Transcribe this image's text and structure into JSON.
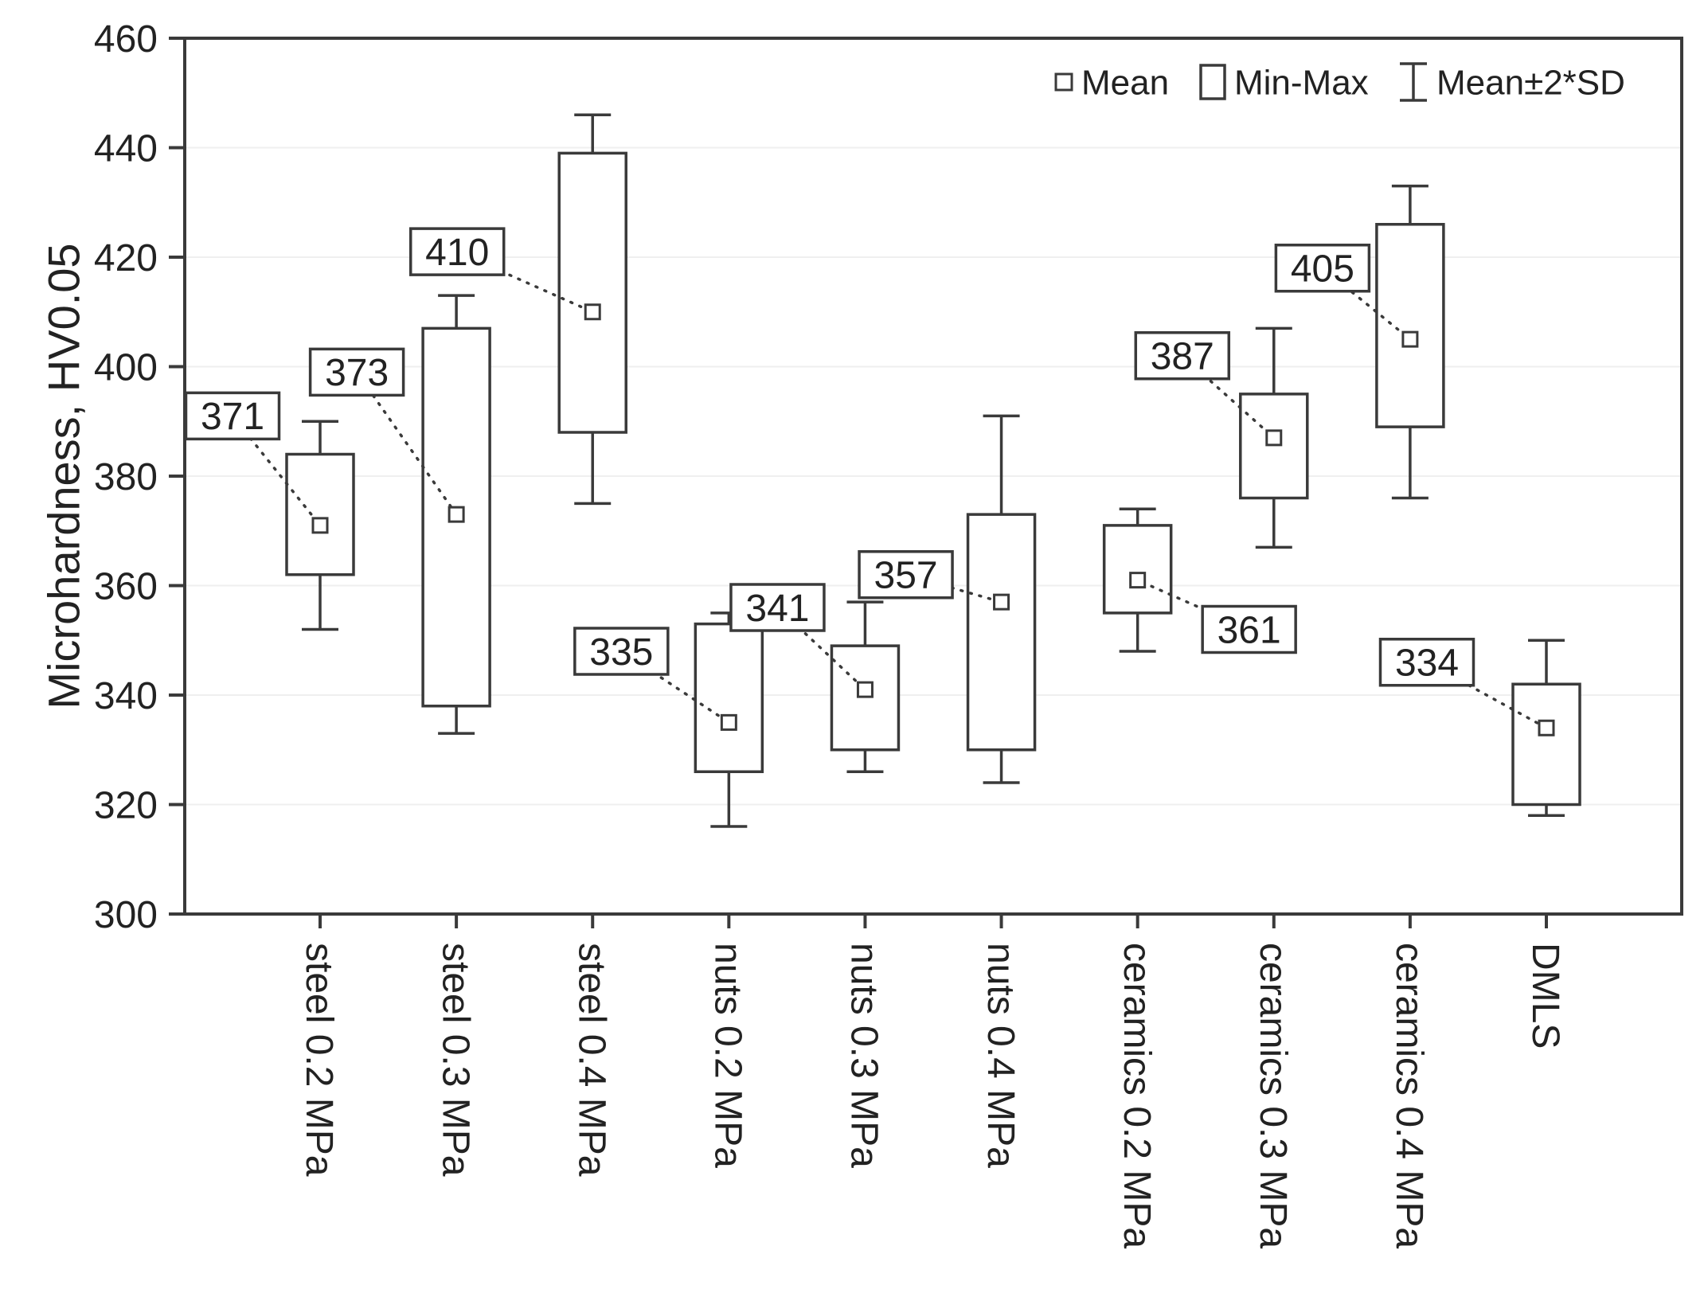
{
  "figure": {
    "background": "#ffffff",
    "axis_color": "#3a3a3a",
    "grid_color": "#efefef",
    "text_color": "#222222",
    "box_fill": "#ffffff"
  },
  "chart_data": {
    "type": "box",
    "title": "",
    "ylabel": "Microhardness, HV0.05",
    "xlabel": "",
    "ylim": [
      300,
      460
    ],
    "yticks": [
      300,
      320,
      340,
      360,
      380,
      400,
      420,
      440,
      460
    ],
    "grid": "faint-horizontal",
    "legend": {
      "position": "top-right-inside",
      "items": [
        {
          "label": "Mean",
          "marker": "open-square"
        },
        {
          "label": "Min-Max",
          "marker": "open-box"
        },
        {
          "label": "Mean±2*SD",
          "marker": "whisker-bar"
        }
      ]
    },
    "categories": [
      "steel 0.2 MPa",
      "steel 0.3 MPa",
      "steel 0.4 MPa",
      "nuts 0.2 MPa",
      "nuts 0.3 MPa",
      "nuts 0.4 MPa",
      "ceramics 0.2 MPa",
      "ceramics 0.3 MPa",
      "ceramics 0.4 MPa",
      "DMLS"
    ],
    "boxes": [
      {
        "category": "steel 0.2 MPa",
        "mean": 371,
        "min": 362,
        "max": 384,
        "mean_minus_2sd": 352,
        "mean_plus_2sd": 390,
        "annotation": {
          "text": "371",
          "dx": -110,
          "y": 391
        }
      },
      {
        "category": "steel 0.3 MPa",
        "mean": 373,
        "min": 338,
        "max": 407,
        "mean_minus_2sd": 333,
        "mean_plus_2sd": 413,
        "annotation": {
          "text": "373",
          "dx": -125,
          "y": 399
        }
      },
      {
        "category": "steel 0.4 MPa",
        "mean": 410,
        "min": 388,
        "max": 439,
        "mean_minus_2sd": 375,
        "mean_plus_2sd": 446,
        "annotation": {
          "text": "410",
          "dx": -170,
          "y": 421
        }
      },
      {
        "category": "nuts 0.2 MPa",
        "mean": 335,
        "min": 326,
        "max": 353,
        "mean_minus_2sd": 316,
        "mean_plus_2sd": 355,
        "annotation": {
          "text": "335",
          "dx": -135,
          "y": 348
        }
      },
      {
        "category": "nuts 0.3 MPa",
        "mean": 341,
        "min": 330,
        "max": 349,
        "mean_minus_2sd": 326,
        "mean_plus_2sd": 357,
        "annotation": {
          "text": "341",
          "dx": -110,
          "y": 356
        }
      },
      {
        "category": "nuts 0.4 MPa",
        "mean": 357,
        "min": 330,
        "max": 373,
        "mean_minus_2sd": 324,
        "mean_plus_2sd": 391,
        "annotation": {
          "text": "357",
          "dx": -120,
          "y": 362
        }
      },
      {
        "category": "ceramics 0.2 MPa",
        "mean": 361,
        "min": 355,
        "max": 371,
        "mean_minus_2sd": 348,
        "mean_plus_2sd": 374,
        "annotation": {
          "text": "361",
          "dx": 140,
          "y": 352
        }
      },
      {
        "category": "ceramics 0.3 MPa",
        "mean": 387,
        "min": 376,
        "max": 395,
        "mean_minus_2sd": 367,
        "mean_plus_2sd": 407,
        "annotation": {
          "text": "387",
          "dx": -115,
          "y": 402
        }
      },
      {
        "category": "ceramics 0.4 MPa",
        "mean": 405,
        "min": 389,
        "max": 426,
        "mean_minus_2sd": 376,
        "mean_plus_2sd": 433,
        "annotation": {
          "text": "405",
          "dx": -110,
          "y": 418
        }
      },
      {
        "category": "DMLS",
        "mean": 334,
        "min": 320,
        "max": 342,
        "mean_minus_2sd": 318,
        "mean_plus_2sd": 350,
        "annotation": {
          "text": "334",
          "dx": -150,
          "y": 346
        }
      }
    ]
  }
}
